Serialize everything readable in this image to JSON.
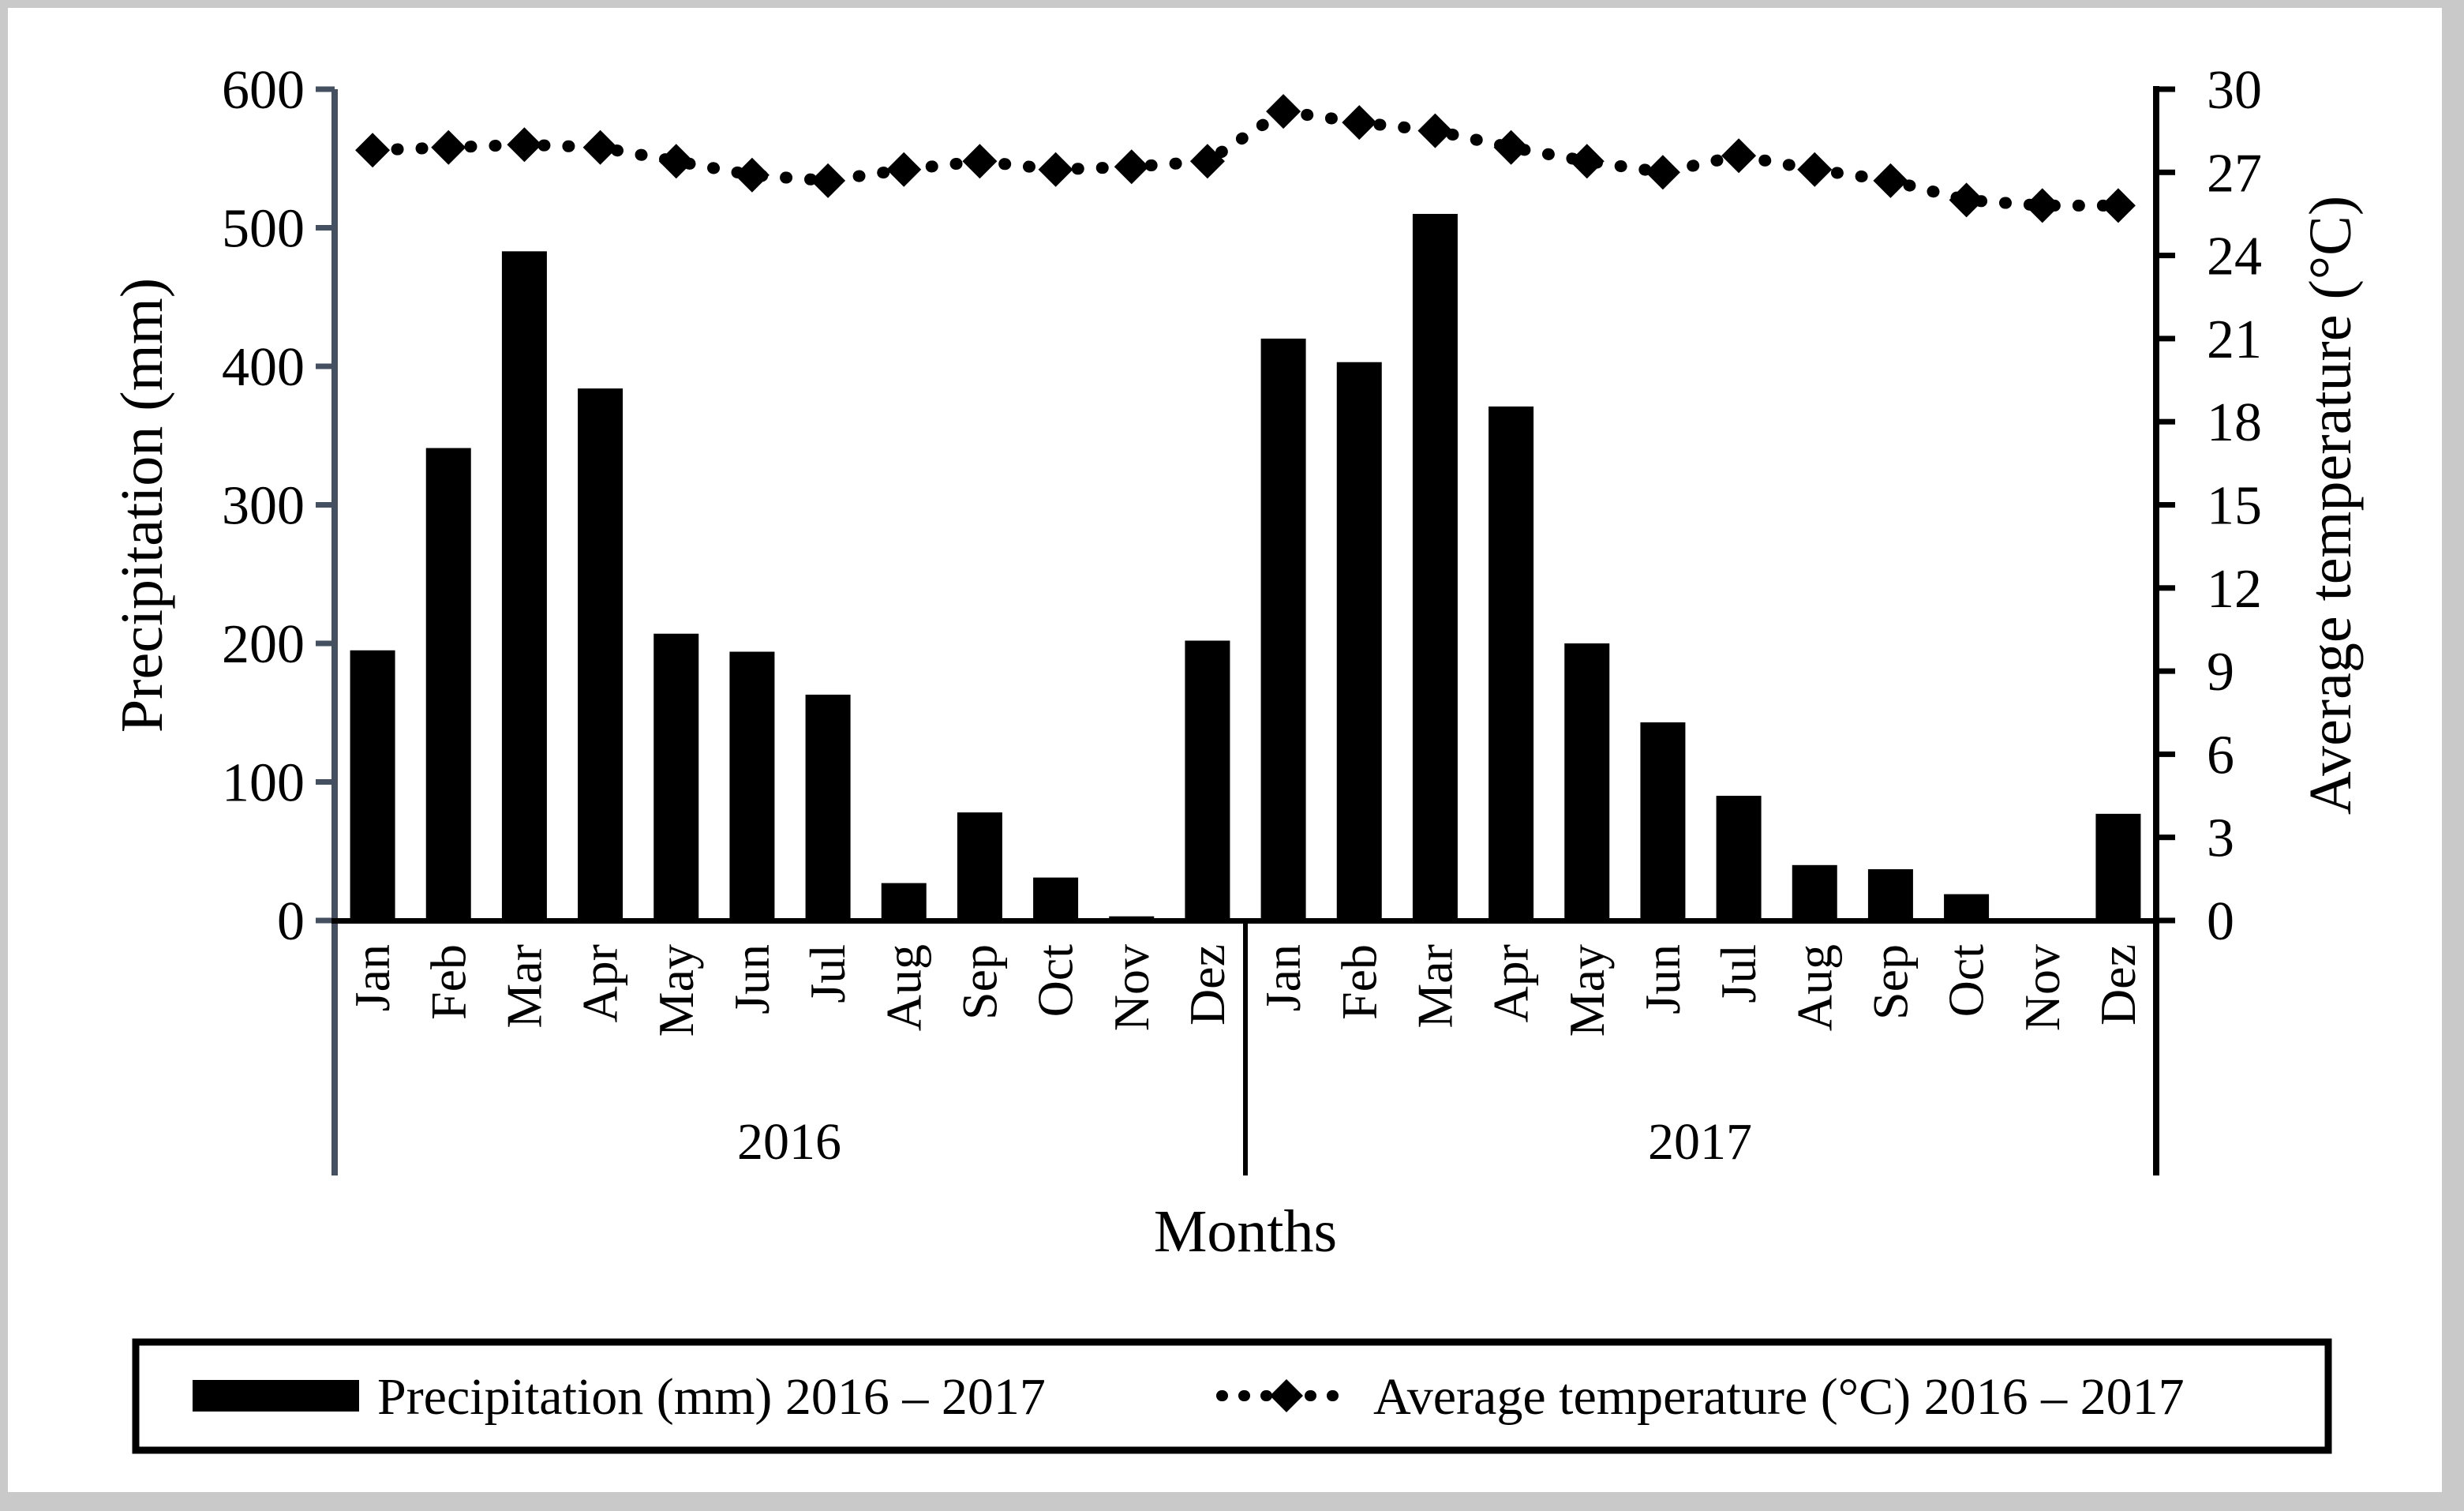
{
  "chart_data": {
    "type": "bar+line",
    "title": "",
    "categories": [
      "Jan",
      "Feb",
      "Mar",
      "Apr",
      "May",
      "Jun",
      "Jul",
      "Aug",
      "Sep",
      "Oct",
      "Nov",
      "Dez",
      "Jan",
      "Feb",
      "Mar",
      "Apr",
      "May",
      "Jun",
      "Jul",
      "Aug",
      "Sep",
      "Oct",
      "Nov",
      "Dez"
    ],
    "year_groups": [
      {
        "label": "2016",
        "months": 12
      },
      {
        "label": "2017",
        "months": 12
      }
    ],
    "series": [
      {
        "name": "Precipitation (mm) 2016 – 2017",
        "type": "bar",
        "axis": "left",
        "values": [
          195,
          341,
          483,
          384,
          207,
          194,
          163,
          27,
          78,
          31,
          3,
          202,
          420,
          403,
          510,
          371,
          200,
          143,
          90,
          40,
          37,
          19,
          0,
          77
        ]
      },
      {
        "name": "Average temperature (°C) 2016 – 2017",
        "type": "dotted-line-diamond",
        "axis": "right",
        "values": [
          27.8,
          27.9,
          28.0,
          27.9,
          27.4,
          26.9,
          26.7,
          27.1,
          27.4,
          27.1,
          27.2,
          27.4,
          29.2,
          28.8,
          28.5,
          27.9,
          27.4,
          27.0,
          27.6,
          27.1,
          26.7,
          26.0,
          25.8,
          25.8
        ]
      }
    ],
    "left_axis": {
      "title": "Precipitation (mm)",
      "range": [
        0,
        600
      ],
      "ticks": [
        0,
        100,
        200,
        300,
        400,
        500,
        600
      ]
    },
    "right_axis": {
      "title": "Average temperature (°C)",
      "range": [
        0,
        30
      ],
      "ticks": [
        0,
        3,
        6,
        9,
        12,
        15,
        18,
        21,
        24,
        27,
        30
      ]
    },
    "x_axis": {
      "title": "Months"
    },
    "legend_position": "bottom",
    "grid": "off",
    "colors": {
      "bar": "#000000",
      "line": "#000000",
      "left_axis_line": "#445060",
      "category_axis_line": "#000000",
      "text": "#000000",
      "frame": "#c9c9c9",
      "background": "#ffffff"
    }
  }
}
